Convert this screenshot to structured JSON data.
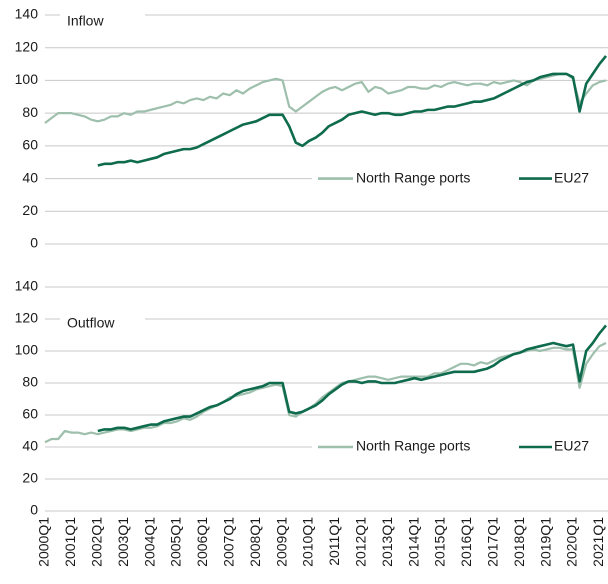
{
  "chart_data": {
    "type": "line",
    "legend": "lower right",
    "categories": [
      "2000Q1",
      null,
      null,
      null,
      "2001Q1",
      null,
      null,
      null,
      "2002Q1",
      null,
      null,
      null,
      "2003Q1",
      null,
      null,
      null,
      "2004Q1",
      null,
      null,
      null,
      "2005Q1",
      null,
      null,
      null,
      "2006Q1",
      null,
      null,
      null,
      "2007Q1",
      null,
      null,
      null,
      "2008Q1",
      null,
      null,
      null,
      "2009Q1",
      null,
      null,
      null,
      "2010Q1",
      null,
      null,
      null,
      "2011Q1",
      null,
      null,
      null,
      "2012Q1",
      null,
      null,
      null,
      "2013Q1",
      null,
      null,
      null,
      "2014Q1",
      null,
      null,
      null,
      "2015Q1",
      null,
      null,
      null,
      "2016Q1",
      null,
      null,
      null,
      "2017Q1",
      null,
      null,
      null,
      "2018Q1",
      null,
      null,
      null,
      "2019Q1",
      null,
      null,
      null,
      "2020Q1",
      null,
      null,
      null,
      "2021Q1",
      null
    ],
    "panels": [
      {
        "title": "Inflow",
        "ylim": [
          0,
          140
        ],
        "yticks": [
          0,
          20,
          40,
          60,
          80,
          100,
          120,
          140
        ],
        "series": [
          {
            "name": "North Range ports",
            "color": "#9dbfac",
            "values": [
              74,
              77,
              80,
              80,
              80,
              79,
              78,
              76,
              75,
              76,
              78,
              78,
              80,
              79,
              81,
              81,
              82,
              83,
              84,
              85,
              87,
              86,
              88,
              89,
              88,
              90,
              89,
              92,
              91,
              94,
              92,
              95,
              97,
              99,
              100,
              101,
              100,
              84,
              81,
              84,
              87,
              90,
              93,
              95,
              96,
              94,
              96,
              98,
              99,
              93,
              96,
              95,
              92,
              93,
              94,
              96,
              96,
              95,
              95,
              97,
              96,
              98,
              99,
              98,
              97,
              98,
              98,
              97,
              99,
              98,
              99,
              100,
              99,
              97,
              100,
              101,
              102,
              103,
              104,
              104,
              101,
              86,
              92,
              97,
              99,
              100
            ]
          },
          {
            "name": "EU27",
            "color": "#0f6b4d",
            "values": [
              null,
              null,
              null,
              null,
              null,
              null,
              null,
              null,
              48,
              49,
              49,
              50,
              50,
              51,
              50,
              51,
              52,
              53,
              55,
              56,
              57,
              58,
              58,
              59,
              61,
              63,
              65,
              67,
              69,
              71,
              73,
              74,
              75,
              77,
              79,
              79,
              79,
              72,
              62,
              60,
              63,
              65,
              68,
              72,
              74,
              76,
              79,
              80,
              81,
              80,
              79,
              80,
              80,
              79,
              79,
              80,
              81,
              81,
              82,
              82,
              83,
              84,
              84,
              85,
              86,
              87,
              87,
              88,
              89,
              91,
              93,
              95,
              97,
              99,
              100,
              102,
              103,
              104,
              104,
              104,
              102,
              81,
              98,
              104,
              110,
              115
            ]
          }
        ]
      },
      {
        "title": "Outflow",
        "ylim": [
          0,
          140
        ],
        "yticks": [
          0,
          20,
          40,
          60,
          80,
          100,
          120,
          140
        ],
        "series": [
          {
            "name": "North Range ports",
            "color": "#9dbfac",
            "values": [
              43,
              45,
              45,
              50,
              49,
              49,
              48,
              49,
              48,
              49,
              50,
              51,
              51,
              50,
              51,
              52,
              52,
              53,
              55,
              55,
              56,
              58,
              57,
              59,
              62,
              64,
              66,
              68,
              71,
              72,
              73,
              74,
              76,
              77,
              78,
              79,
              78,
              60,
              59,
              62,
              64,
              67,
              71,
              74,
              77,
              80,
              81,
              82,
              83,
              84,
              84,
              83,
              82,
              83,
              84,
              84,
              84,
              84,
              84,
              86,
              86,
              88,
              90,
              92,
              92,
              91,
              93,
              92,
              94,
              96,
              97,
              98,
              99,
              100,
              101,
              100,
              101,
              102,
              102,
              101,
              101,
              77,
              92,
              98,
              103,
              105
            ]
          },
          {
            "name": "EU27",
            "color": "#0f6b4d",
            "values": [
              null,
              null,
              null,
              null,
              null,
              null,
              null,
              null,
              50,
              51,
              51,
              52,
              52,
              51,
              52,
              53,
              54,
              54,
              56,
              57,
              58,
              59,
              59,
              61,
              63,
              65,
              66,
              68,
              70,
              73,
              75,
              76,
              77,
              78,
              80,
              80,
              80,
              62,
              61,
              62,
              64,
              66,
              69,
              73,
              76,
              79,
              81,
              81,
              80,
              81,
              81,
              80,
              80,
              80,
              81,
              82,
              83,
              82,
              83,
              84,
              85,
              86,
              87,
              87,
              87,
              87,
              88,
              89,
              91,
              94,
              96,
              98,
              99,
              101,
              102,
              103,
              104,
              105,
              104,
              103,
              104,
              81,
              100,
              105,
              111,
              116
            ]
          }
        ]
      }
    ]
  }
}
